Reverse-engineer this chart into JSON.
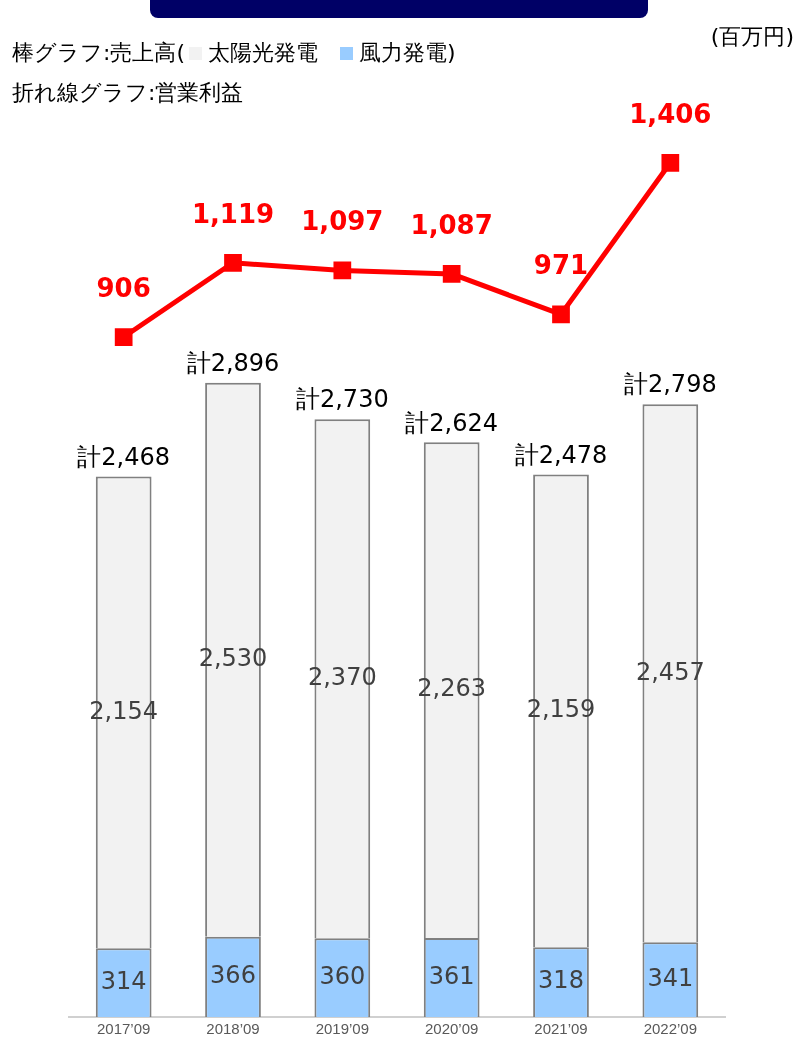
{
  "chart_data": [
    {
      "type": "line",
      "title": "棒グラフ:売上高",
      "subtitle": "折れ線グラフ:営業利益",
      "annotations": [
        "(百万円)",
        "(",
        ")"
      ],
      "categories": [
        null,
        null,
        null,
        null,
        null,
        null
      ],
      "grid": false,
      "series": [
        {
          "color": "#ff0000",
          "marker": "square",
          "values": [
            906,
            1119,
            1097,
            1087,
            971,
            1406
          ],
          "value_labels": [
            "906",
            "1,119",
            "1,097",
            "1,087",
            "971",
            "1,406"
          ]
        }
      ]
    },
    {
      "type": "bar",
      "categories": [
        "2017’09",
        "2018’09",
        "2019’09",
        "2020’09",
        "2021’09",
        "2022’09"
      ],
      "stacked": true,
      "legend": "top left",
      "grid": false,
      "totals": [
        "計2,468",
        "計2,896",
        "計2,730",
        "計2,624",
        "計2,478",
        "計2,798"
      ],
      "series": [
        {
          "name": "風力発電",
          "color": "#99ccff",
          "values": [
            314,
            366,
            360,
            361,
            318,
            341
          ],
          "value_labels": [
            "314",
            "366",
            "360",
            "361",
            "318",
            "341"
          ]
        },
        {
          "name": "太陽光発電",
          "color": "#f2f2f2",
          "values": [
            2154,
            2530,
            2370,
            2263,
            2159,
            2457
          ],
          "value_labels": [
            "2,154",
            "2,530",
            "2,370",
            "2,263",
            "2,159",
            "2,457"
          ]
        }
      ]
    }
  ]
}
